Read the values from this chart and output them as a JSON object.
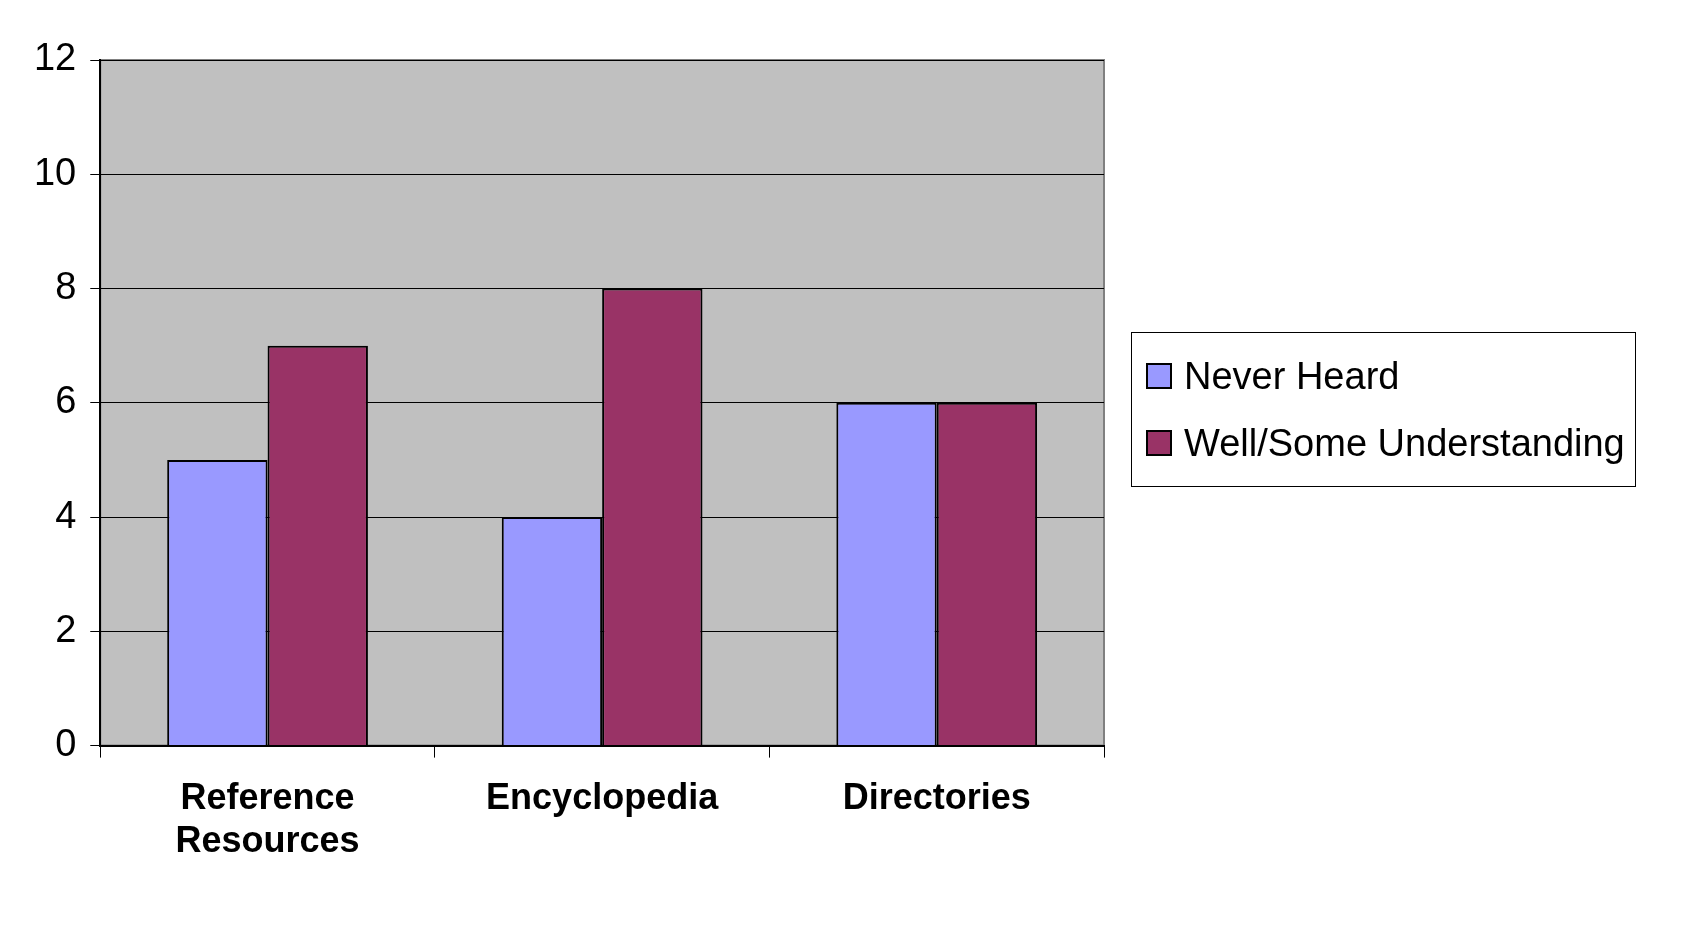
{
  "chart_data": {
    "type": "bar",
    "categories": [
      "Reference Resources",
      "Encyclopedia",
      "Directories"
    ],
    "series": [
      {
        "name": "Never Heard",
        "color": "#9999ff",
        "values": [
          5,
          4,
          6
        ]
      },
      {
        "name": "Well/Some Understanding",
        "color": "#993366",
        "values": [
          7,
          8,
          6
        ]
      }
    ],
    "ylim": [
      0,
      12
    ],
    "yticks": [
      0,
      2,
      4,
      6,
      8,
      10,
      12
    ],
    "grid": "y",
    "legend": "right"
  }
}
